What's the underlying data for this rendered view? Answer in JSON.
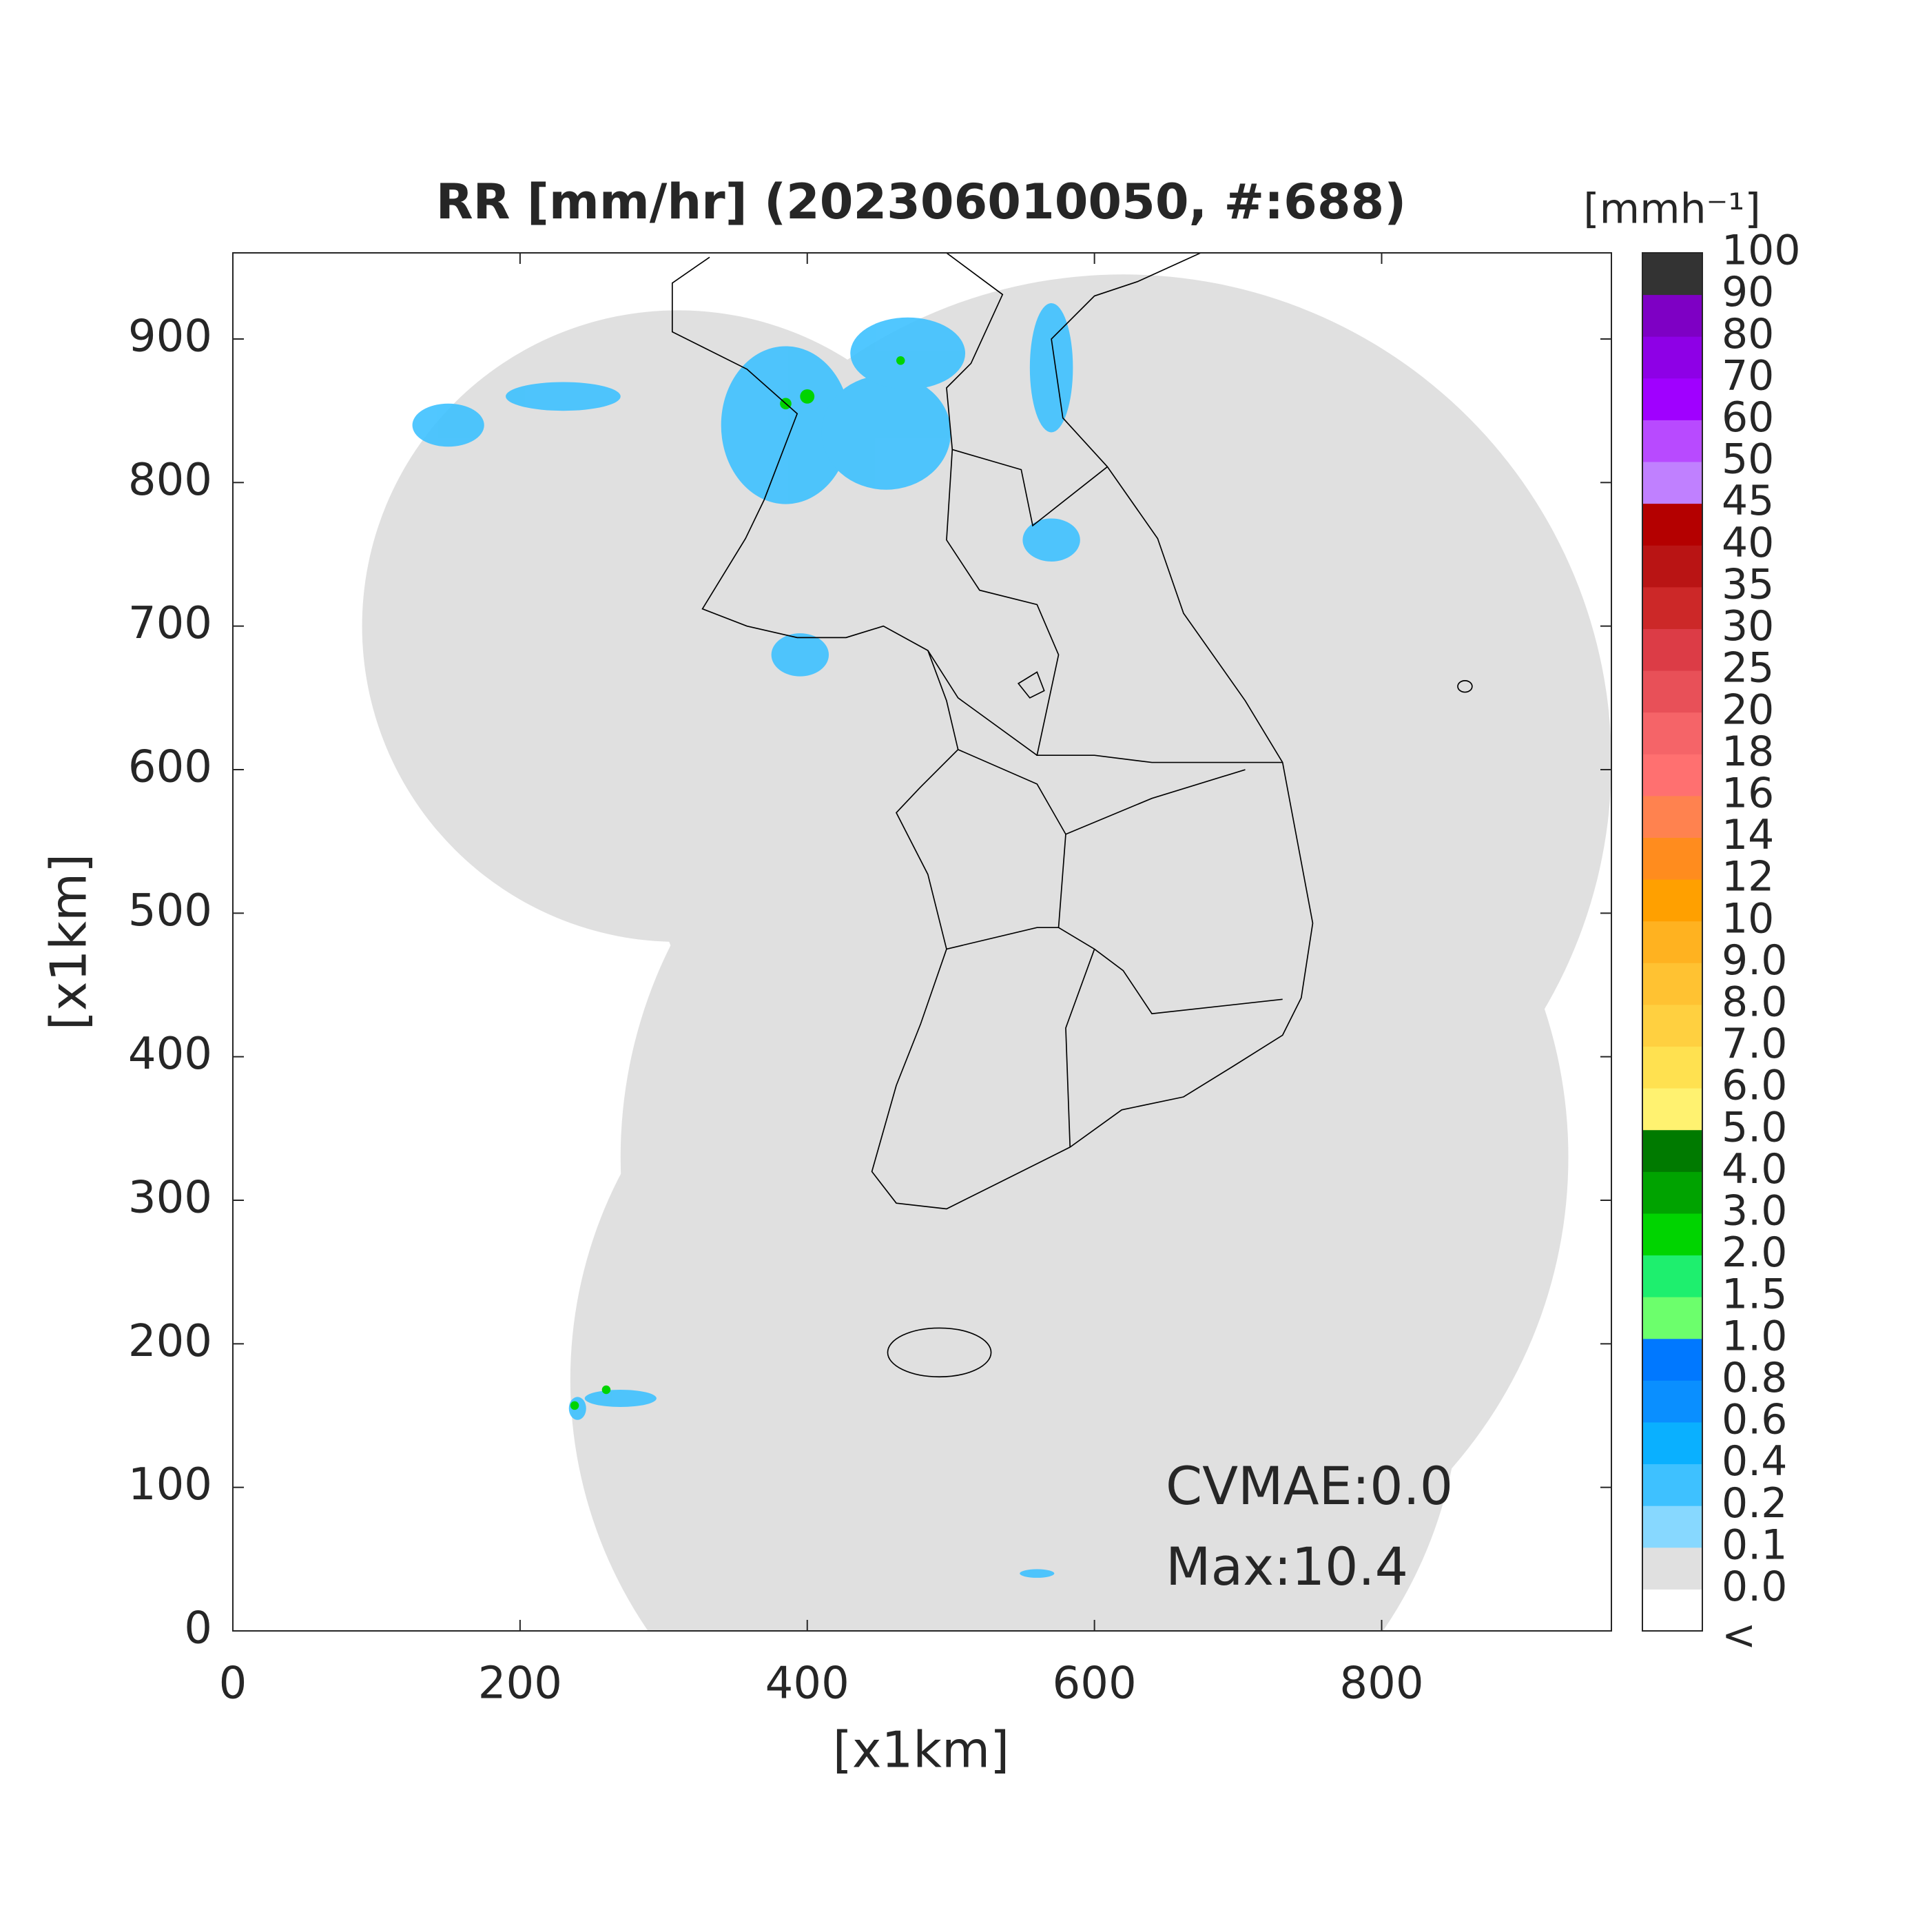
{
  "chart_data": {
    "type": "map",
    "title": "RR [mm/hr] (202306010050, #:688)",
    "xlabel": "[x1km]",
    "ylabel": "[x1km]",
    "xlim": [
      0,
      960
    ],
    "ylim": [
      0,
      960
    ],
    "xticks": [
      0,
      200,
      400,
      600,
      800
    ],
    "yticks": [
      0,
      100,
      200,
      300,
      400,
      500,
      600,
      700,
      800,
      900
    ],
    "grid": false,
    "annotations": [
      "CVMAE:0.0",
      "Max:10.4"
    ],
    "colorbar": {
      "label": "[mmh⁻¹]",
      "levels": [
        "<",
        "0.0",
        "0.1",
        "0.2",
        "0.4",
        "0.6",
        "0.8",
        "1.0",
        "1.5",
        "2.0",
        "3.0",
        "4.0",
        "5.0",
        "6.0",
        "7.0",
        "8.0",
        "9.0",
        "10",
        "12",
        "14",
        "16",
        "18",
        "20",
        "25",
        "30",
        "35",
        "40",
        "45",
        "50",
        "60",
        "70",
        "80",
        "90",
        "100"
      ],
      "colors": [
        "#ffffff",
        "#e0e0e0",
        "#87d8ff",
        "#3ec1ff",
        "#0ab0ff",
        "#0a8fff",
        "#0078ff",
        "#6cff6c",
        "#1eef6e",
        "#00d400",
        "#00a300",
        "#007a00",
        "#fff270",
        "#ffe150",
        "#ffd040",
        "#ffc232",
        "#ffb220",
        "#ffa000",
        "#ff8c1e",
        "#ff824f",
        "#ff7070",
        "#f56468",
        "#e85058",
        "#dc3c46",
        "#cc2828",
        "#b91414",
        "#b40000",
        "#c080ff",
        "#b84aff",
        "#a000ff",
        "#8e00e6",
        "#7e00c4",
        "#333333"
      ]
    }
  }
}
